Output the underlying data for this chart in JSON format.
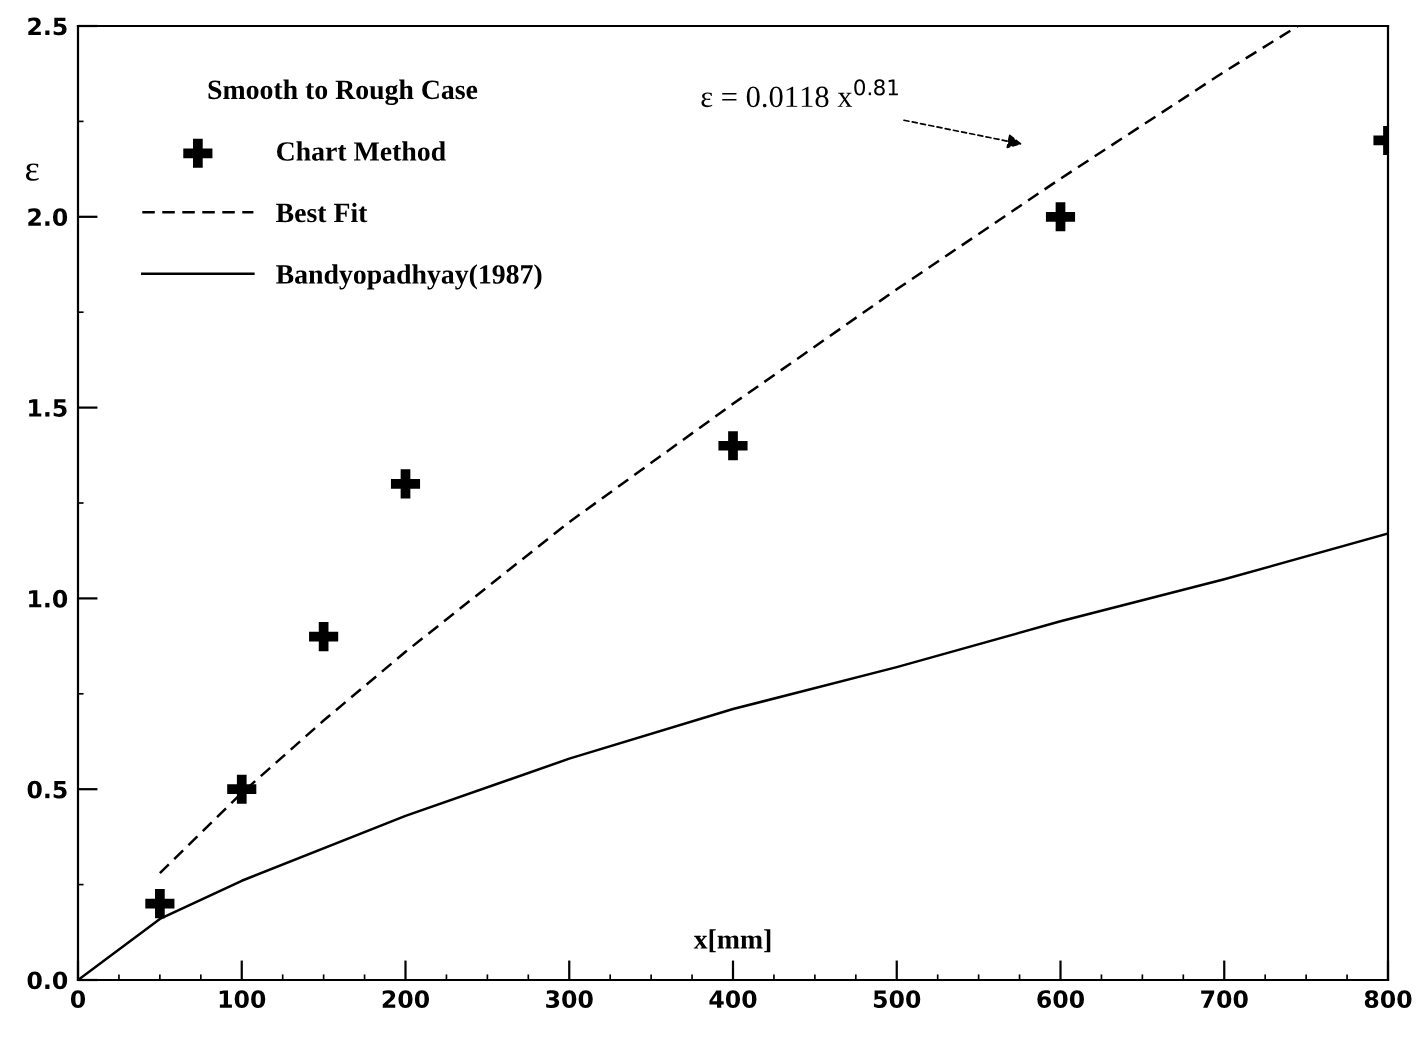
{
  "chart_data": {
    "type": "line",
    "legend_title": "Smooth to Rough Case",
    "xlabel": "x[mm]",
    "ylabel": "ε",
    "xlim": [
      0,
      800
    ],
    "ylim": [
      0,
      2.5
    ],
    "xticks": [
      0,
      100,
      200,
      300,
      400,
      500,
      600,
      700,
      800
    ],
    "yticks": [
      {
        "value": 0,
        "label": "0.0"
      },
      {
        "value": 0.5,
        "label": "0.5"
      },
      {
        "value": 1,
        "label": "1.0"
      },
      {
        "value": 1.5,
        "label": "1.5"
      },
      {
        "value": 2,
        "label": "2.0"
      },
      {
        "value": 2.5,
        "label": "2.5"
      }
    ],
    "grid": false,
    "legend": "top left",
    "series": [
      {
        "name": "Chart Method",
        "type": "scatter",
        "marker": "cross",
        "color": "#000000",
        "x": [
          50,
          100,
          150,
          200,
          400,
          600,
          800
        ],
        "values": [
          0.2,
          0.5,
          0.9,
          1.3,
          1.4,
          2.0,
          2.2
        ]
      },
      {
        "name": "Best Fit",
        "line_style": "dashed",
        "color": "#000000",
        "x": [
          50,
          100,
          150,
          200,
          300,
          400,
          500,
          600,
          700,
          745
        ],
        "values": [
          0.28,
          0.49,
          0.68,
          0.86,
          1.2,
          1.51,
          1.81,
          2.1,
          2.38,
          2.5
        ]
      },
      {
        "name": "Bandyopadhyay(1987)",
        "line_style": "solid",
        "color": "#000000",
        "x": [
          0,
          50,
          100,
          200,
          300,
          400,
          500,
          600,
          700,
          800
        ],
        "values": [
          0,
          0.16,
          0.26,
          0.43,
          0.58,
          0.71,
          0.82,
          0.94,
          1.05,
          1.17
        ]
      }
    ],
    "annotations": [
      "ε = 0.0118 x$^{0.81}$"
    ]
  }
}
